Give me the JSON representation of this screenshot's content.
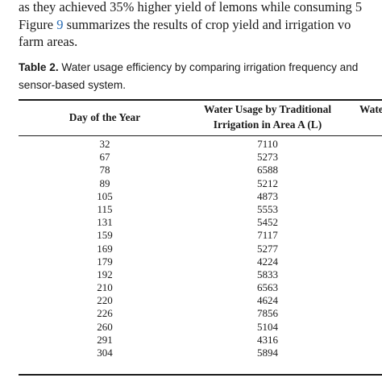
{
  "paragraph": {
    "line1": "as they achieved 35% higher yield of lemons while consuming 5",
    "line2_before": "Figure ",
    "line2_link": "9",
    "line2_after": " summarizes the results of crop yield and irrigation vo",
    "line3": "farm areas."
  },
  "caption": {
    "label": "Table 2.",
    "text_line1": " Water usage efficiency by comparing irrigation frequency and",
    "text_line2": "sensor-based system."
  },
  "table": {
    "headers": {
      "day": "Day of the Year",
      "traditional_line1": "Water Usage by Traditional",
      "traditional_line2": "Irrigation in Area A (L)",
      "next_partial": "Wate"
    },
    "rows": [
      {
        "day": "32",
        "traditional": "7110"
      },
      {
        "day": "67",
        "traditional": "5273"
      },
      {
        "day": "78",
        "traditional": "6588"
      },
      {
        "day": "89",
        "traditional": "5212"
      },
      {
        "day": "105",
        "traditional": "4873"
      },
      {
        "day": "115",
        "traditional": "5553"
      },
      {
        "day": "131",
        "traditional": "5452"
      },
      {
        "day": "159",
        "traditional": "7117"
      },
      {
        "day": "169",
        "traditional": "5277"
      },
      {
        "day": "179",
        "traditional": "4224"
      },
      {
        "day": "192",
        "traditional": "5833"
      },
      {
        "day": "210",
        "traditional": "6563"
      },
      {
        "day": "220",
        "traditional": "4624"
      },
      {
        "day": "226",
        "traditional": "7856"
      },
      {
        "day": "260",
        "traditional": "5104"
      },
      {
        "day": "291",
        "traditional": "4316"
      },
      {
        "day": "304",
        "traditional": "5894"
      }
    ]
  }
}
